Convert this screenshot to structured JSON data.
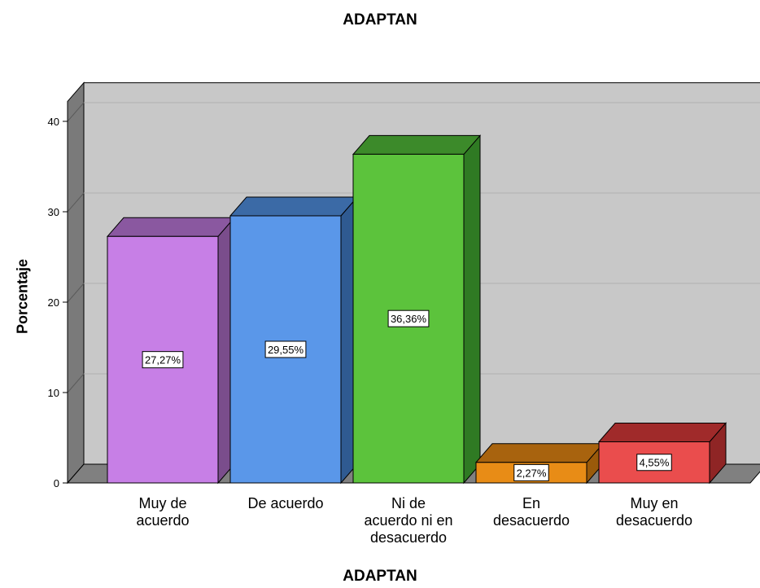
{
  "chart_data": {
    "type": "bar",
    "title": "ADAPTAN",
    "xlabel": "ADAPTAN",
    "ylabel": "Porcentaje",
    "categories": [
      [
        "Muy de",
        "acuerdo"
      ],
      [
        "De acuerdo"
      ],
      [
        "Ni de",
        "acuerdo ni en",
        "desacuerdo"
      ],
      [
        "En",
        "desacuerdo"
      ],
      [
        "Muy en",
        "desacuerdo"
      ]
    ],
    "values": [
      27.27,
      29.55,
      36.36,
      2.27,
      4.55
    ],
    "data_labels": [
      "27,27%",
      "29,55%",
      "36,36%",
      "2,27%",
      "4,55%"
    ],
    "yticks": [
      "0",
      "10",
      "20",
      "30",
      "40"
    ],
    "ylim": [
      0,
      40
    ],
    "grid": true,
    "colors": [
      {
        "front": "#c77fe6",
        "side": "#7a4d8c",
        "top": "#8a58a0"
      },
      {
        "front": "#5a97e9",
        "side": "#2f5a91",
        "top": "#3b6aa6"
      },
      {
        "front": "#5cc33c",
        "side": "#2f7a23",
        "top": "#3c8a2a"
      },
      {
        "front": "#e88c16",
        "side": "#9a5a0a",
        "top": "#a8630e"
      },
      {
        "front": "#ea4d4d",
        "side": "#8f2525",
        "top": "#a02a2a"
      }
    ],
    "wall_color": "#c8c8c8",
    "side_wall_color": "#7a7a7a",
    "floor_color": "#808080"
  }
}
